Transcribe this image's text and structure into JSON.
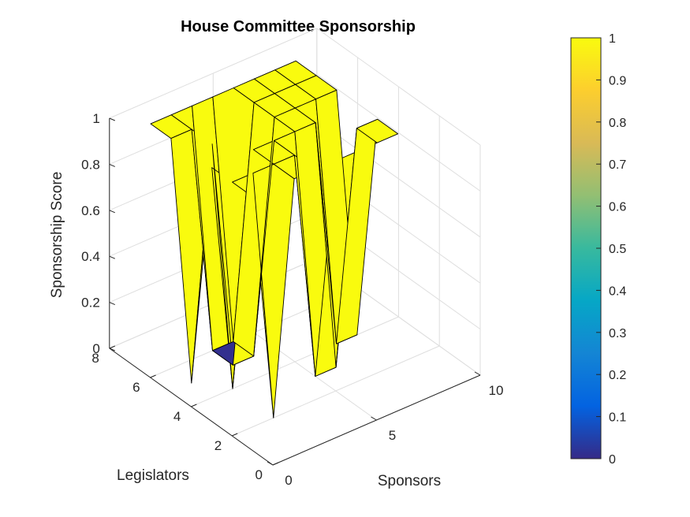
{
  "chart_data": {
    "type": "surface",
    "title": "House Committee Sponsorship",
    "xlabel": "Sponsors",
    "ylabel": "Legislators",
    "zlabel": "Sponsorship Score",
    "xlim": [
      0,
      10
    ],
    "ylim": [
      0,
      8
    ],
    "zlim": [
      0,
      1
    ],
    "x_ticks": [
      "0",
      "5",
      "10"
    ],
    "y_ticks": [
      "0",
      "2",
      "4",
      "6",
      "8"
    ],
    "z_ticks": [
      "0",
      "0.2",
      "0.4",
      "0.6",
      "0.8",
      "1"
    ],
    "grid": true,
    "colormap": "parula",
    "surface_strips": [
      {
        "sponsor": 1,
        "legislators": [
          2,
          3,
          4,
          5,
          6,
          7
        ],
        "scores": [
          1,
          1,
          1,
          0,
          1,
          1
        ]
      },
      {
        "sponsor": 2,
        "legislators": [
          2,
          3,
          4,
          5,
          6,
          7
        ],
        "scores": [
          0,
          1,
          0,
          1,
          1,
          1
        ]
      },
      {
        "sponsor": 3,
        "legislators": [
          2,
          3,
          4,
          5,
          6,
          7
        ],
        "scores": [
          1,
          1,
          1,
          0,
          0,
          1
        ]
      },
      {
        "sponsor": 4,
        "legislators": [
          2,
          3,
          4,
          5,
          6,
          7
        ],
        "scores": [
          1,
          1,
          1,
          0,
          0,
          1
        ]
      },
      {
        "sponsor": 5,
        "legislators": [
          2,
          3,
          4,
          5,
          6,
          7
        ],
        "scores": [
          1,
          0,
          1,
          1,
          1,
          1
        ]
      },
      {
        "sponsor": 6,
        "legislators": [
          2,
          3,
          4,
          5,
          6,
          7
        ],
        "scores": [
          1,
          0,
          1,
          1,
          1,
          1
        ]
      },
      {
        "sponsor": 7,
        "legislators": [
          2,
          3,
          4,
          5,
          6,
          7
        ],
        "scores": [
          1,
          1,
          0,
          1,
          1,
          1
        ]
      },
      {
        "sponsor": 8,
        "legislators": [
          2,
          3,
          4,
          5,
          6,
          7
        ],
        "scores": [
          1,
          1,
          0,
          1,
          1,
          1
        ]
      }
    ]
  },
  "colorbar": {
    "ticks": [
      "0",
      "0.1",
      "0.2",
      "0.3",
      "0.4",
      "0.5",
      "0.6",
      "0.7",
      "0.8",
      "0.9",
      "1"
    ],
    "stops": [
      "#352a87",
      "#0363e1",
      "#1485d4",
      "#06a7c6",
      "#38b99e",
      "#92bf73",
      "#d9ba56",
      "#fcce2e",
      "#f9fb0e"
    ]
  },
  "colors": {
    "high": "#f9fb0e",
    "low": "#33308f",
    "edge": "#000000",
    "grid": "#dedede"
  }
}
